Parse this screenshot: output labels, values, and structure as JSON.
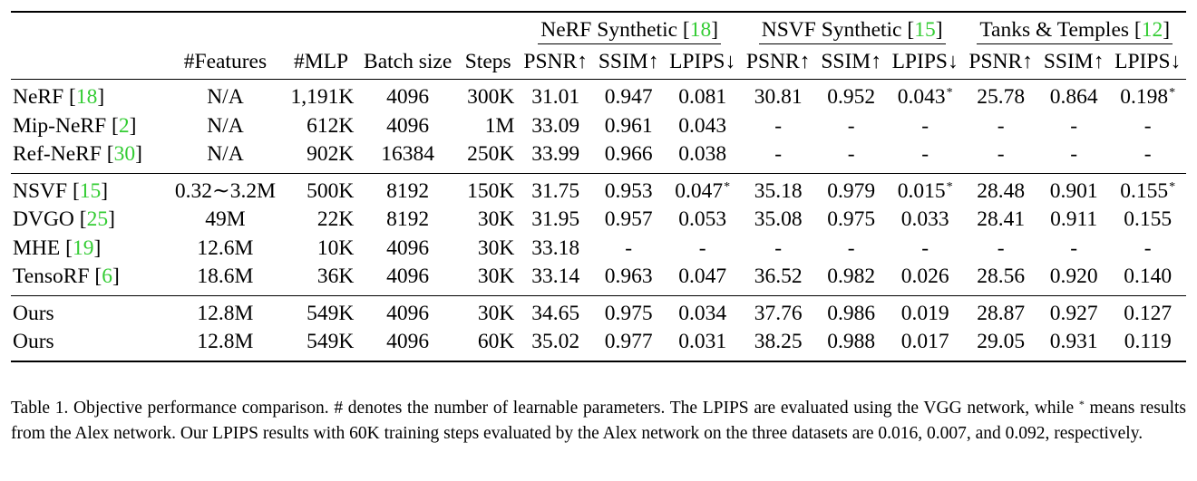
{
  "table": {
    "column_headers": {
      "features": "#Features",
      "mlp": "#MLP",
      "batch_size": "Batch size",
      "steps": "Steps"
    },
    "groups": [
      {
        "name": "NeRF Synthetic",
        "cite": "18"
      },
      {
        "name": "NSVF Synthetic",
        "cite": "15"
      },
      {
        "name": "Tanks & Temples",
        "cite": "12"
      }
    ],
    "metrics": [
      "PSNR↑",
      "SSIM↑",
      "LPIPS↓"
    ],
    "sections": [
      {
        "rows": [
          {
            "method": "NeRF",
            "cite": "18",
            "features": "N/A",
            "mlp": "1,191K",
            "batch": "4096",
            "steps": "300K",
            "vals": [
              "31.01",
              "0.947",
              "0.081",
              "30.81",
              "0.952",
              "0.043",
              "25.78",
              "0.864",
              "0.198"
            ],
            "star": [
              false,
              false,
              false,
              false,
              false,
              true,
              false,
              false,
              true
            ]
          },
          {
            "method": "Mip-NeRF",
            "cite": "2",
            "features": "N/A",
            "mlp": "612K",
            "batch": "4096",
            "steps": "1M",
            "vals": [
              "33.09",
              "0.961",
              "0.043",
              "-",
              "-",
              "-",
              "-",
              "-",
              "-"
            ],
            "star": [
              false,
              false,
              false,
              false,
              false,
              false,
              false,
              false,
              false
            ]
          },
          {
            "method": "Ref-NeRF",
            "cite": "30",
            "features": "N/A",
            "mlp": "902K",
            "batch": "16384",
            "steps": "250K",
            "vals": [
              "33.99",
              "0.966",
              "0.038",
              "-",
              "-",
              "-",
              "-",
              "-",
              "-"
            ],
            "star": [
              false,
              false,
              false,
              false,
              false,
              false,
              false,
              false,
              false
            ]
          }
        ]
      },
      {
        "rows": [
          {
            "method": "NSVF",
            "cite": "15",
            "features": "0.32∼3.2M",
            "mlp": "500K",
            "batch": "8192",
            "steps": "150K",
            "vals": [
              "31.75",
              "0.953",
              "0.047",
              "35.18",
              "0.979",
              "0.015",
              "28.48",
              "0.901",
              "0.155"
            ],
            "star": [
              false,
              false,
              true,
              false,
              false,
              true,
              false,
              false,
              true
            ]
          },
          {
            "method": "DVGO",
            "cite": "25",
            "features": "49M",
            "mlp": "22K",
            "batch": "8192",
            "steps": "30K",
            "vals": [
              "31.95",
              "0.957",
              "0.053",
              "35.08",
              "0.975",
              "0.033",
              "28.41",
              "0.911",
              "0.155"
            ],
            "star": [
              false,
              false,
              false,
              false,
              false,
              false,
              false,
              false,
              false
            ]
          },
          {
            "method": "MHE",
            "cite": "19",
            "features": "12.6M",
            "mlp": "10K",
            "batch": "4096",
            "steps": "30K",
            "vals": [
              "33.18",
              "-",
              "-",
              "-",
              "-",
              "-",
              "-",
              "-",
              "-"
            ],
            "star": [
              false,
              false,
              false,
              false,
              false,
              false,
              false,
              false,
              false
            ]
          },
          {
            "method": "TensoRF",
            "cite": "6",
            "features": "18.6M",
            "mlp": "36K",
            "batch": "4096",
            "steps": "30K",
            "vals": [
              "33.14",
              "0.963",
              "0.047",
              "36.52",
              "0.982",
              "0.026",
              "28.56",
              "0.920",
              "0.140"
            ],
            "star": [
              false,
              false,
              false,
              false,
              false,
              false,
              false,
              false,
              false
            ]
          }
        ]
      },
      {
        "rows": [
          {
            "method": "Ours",
            "cite": "",
            "features": "12.8M",
            "mlp": "549K",
            "batch": "4096",
            "steps": "30K",
            "vals": [
              "34.65",
              "0.975",
              "0.034",
              "37.76",
              "0.986",
              "0.019",
              "28.87",
              "0.927",
              "0.127"
            ],
            "star": [
              false,
              false,
              false,
              false,
              false,
              false,
              false,
              false,
              false
            ],
            "bold": false
          },
          {
            "method": "Ours",
            "cite": "",
            "features": "12.8M",
            "mlp": "549K",
            "batch": "4096",
            "steps": "60K",
            "vals": [
              "35.02",
              "0.977",
              "0.031",
              "38.25",
              "0.988",
              "0.017",
              "29.05",
              "0.931",
              "0.119"
            ],
            "star": [
              false,
              false,
              false,
              false,
              false,
              false,
              false,
              false,
              false
            ],
            "bold": true
          }
        ]
      }
    ]
  },
  "caption": {
    "part1": "Table 1.  Objective performance comparison.  # denotes the number of learnable parameters.  The LPIPS are evaluated using the VGG network, while ",
    "star": "*",
    "part2": " means results from the Alex network. Our LPIPS results with 60K training steps evaluated by the Alex network on the three datasets are 0.016, 0.007, and 0.092, respectively."
  },
  "colors": {
    "citation": "#33cc33",
    "text": "#000000"
  }
}
